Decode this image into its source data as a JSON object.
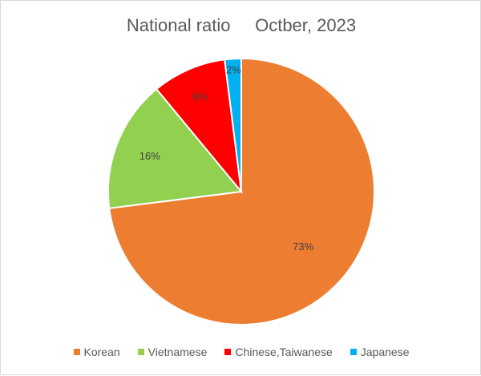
{
  "chart_data": {
    "type": "pie",
    "title": "National ratio     Octber, 2023",
    "labels": [
      "Korean",
      "Vietnamese",
      "Chinese,Taiwanese",
      "Japanese"
    ],
    "values": [
      73,
      16,
      9,
      2
    ],
    "value_labels": [
      "73%",
      "16%",
      "9%",
      "2%"
    ],
    "colors": [
      "#ed7d31",
      "#92d050",
      "#ff0000",
      "#00b0f0"
    ],
    "legend_position": "bottom"
  }
}
